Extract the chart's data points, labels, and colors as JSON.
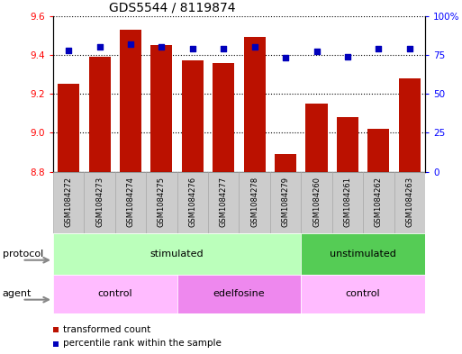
{
  "title": "GDS5544 / 8119874",
  "samples": [
    "GSM1084272",
    "GSM1084273",
    "GSM1084274",
    "GSM1084275",
    "GSM1084276",
    "GSM1084277",
    "GSM1084278",
    "GSM1084279",
    "GSM1084260",
    "GSM1084261",
    "GSM1084262",
    "GSM1084263"
  ],
  "bar_values": [
    9.25,
    9.39,
    9.53,
    9.45,
    9.37,
    9.36,
    9.49,
    8.89,
    9.15,
    9.08,
    9.02,
    9.28
  ],
  "dot_values": [
    78,
    80,
    82,
    80,
    79,
    79,
    80,
    73,
    77,
    74,
    79,
    79
  ],
  "ylim": [
    8.8,
    9.6
  ],
  "yticks": [
    8.8,
    9.0,
    9.2,
    9.4,
    9.6
  ],
  "y2lim": [
    0,
    100
  ],
  "y2ticks": [
    0,
    25,
    50,
    75,
    100
  ],
  "y2ticklabels": [
    "0",
    "25",
    "50",
    "75",
    "100%"
  ],
  "bar_color": "#bb1100",
  "dot_color": "#0000bb",
  "bar_bottom": 8.8,
  "protocol_groups": [
    {
      "label": "stimulated",
      "start": 0,
      "end": 7,
      "color": "#bbffbb"
    },
    {
      "label": "unstimulated",
      "start": 8,
      "end": 11,
      "color": "#55cc55"
    }
  ],
  "agent_groups": [
    {
      "label": "control",
      "start": 0,
      "end": 3,
      "color": "#ffbbff"
    },
    {
      "label": "edelfosine",
      "start": 4,
      "end": 7,
      "color": "#ee88ee"
    },
    {
      "label": "control",
      "start": 8,
      "end": 11,
      "color": "#ffbbff"
    }
  ],
  "legend_bar_label": "transformed count",
  "legend_dot_label": "percentile rank within the sample",
  "protocol_label": "protocol",
  "agent_label": "agent",
  "sample_bg_color": "#cccccc",
  "sample_border_color": "#aaaaaa"
}
